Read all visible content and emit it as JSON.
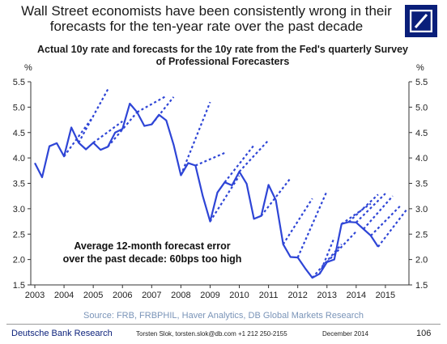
{
  "headline": "Wall Street economists have been consistently wrong in their forecasts for the ten-year rate over the past decade",
  "logo": {
    "icon": "deutsche-bank-slash-logo",
    "color": "#0a1f7a"
  },
  "source": "Source: FRB, FRBPHIL, Haver Analytics, DB Global Markets Research",
  "footer": {
    "brand": "Deutsche Bank Research",
    "contact": "Torsten Slok, torsten.slok@db.com  +1 212 250-2155",
    "date": "December 2014",
    "page": "106"
  },
  "chart_data": {
    "type": "line",
    "title": "Actual 10y rate and forecasts for the 10y rate from the Fed's quarterly Survey of Professional Forecasters",
    "ylabel_left": "%",
    "ylabel_right": "%",
    "xlim": [
      2003,
      2015.85
    ],
    "ylim": [
      1.5,
      5.5
    ],
    "yticks": [
      1.5,
      2.0,
      2.5,
      3.0,
      3.5,
      4.0,
      4.5,
      5.0,
      5.5
    ],
    "ytick_labels": [
      "1.5",
      "2.0",
      "2.5",
      "3.0",
      "3.5",
      "4.0",
      "4.5",
      "5.0",
      "5.5"
    ],
    "xtick_labels": [
      "2003",
      "2004",
      "2005",
      "2006",
      "2007",
      "2008",
      "2009",
      "2010",
      "2011",
      "2012",
      "2013",
      "2014",
      "2015"
    ],
    "grid": false,
    "legend": "none",
    "annotation": "Average 12-month forecast error over the past decade: 60bps too high",
    "line_color": "#2e45d6",
    "actual": {
      "x": [
        2003.0,
        2003.25,
        2003.5,
        2003.75,
        2004.0,
        2004.25,
        2004.5,
        2004.75,
        2005.0,
        2005.25,
        2005.5,
        2005.75,
        2006.0,
        2006.25,
        2006.5,
        2006.75,
        2007.0,
        2007.25,
        2007.5,
        2007.75,
        2008.0,
        2008.25,
        2008.5,
        2008.75,
        2009.0,
        2009.25,
        2009.5,
        2009.75,
        2010.0,
        2010.25,
        2010.5,
        2010.75,
        2011.0,
        2011.25,
        2011.5,
        2011.75,
        2012.0,
        2012.25,
        2012.5,
        2012.75,
        2013.0,
        2013.25,
        2013.5,
        2013.75,
        2014.0,
        2014.25,
        2014.5,
        2014.75
      ],
      "y": [
        3.9,
        3.62,
        4.23,
        4.29,
        4.03,
        4.6,
        4.3,
        4.17,
        4.3,
        4.16,
        4.22,
        4.5,
        4.57,
        5.07,
        4.9,
        4.63,
        4.66,
        4.85,
        4.74,
        4.26,
        3.66,
        3.9,
        3.85,
        3.25,
        2.75,
        3.32,
        3.52,
        3.46,
        3.73,
        3.49,
        2.8,
        2.86,
        3.47,
        3.17,
        2.3,
        2.05,
        2.04,
        1.83,
        1.64,
        1.72,
        1.95,
        2.0,
        2.7,
        2.74,
        2.73,
        2.6,
        2.47,
        2.25
      ]
    },
    "forecasts": [
      {
        "x": [
          2004.0,
          2005.0
        ],
        "y": [
          4.03,
          4.82
        ]
      },
      {
        "x": [
          2004.5,
          2005.5
        ],
        "y": [
          4.3,
          5.35
        ]
      },
      {
        "x": [
          2005.0,
          2006.0
        ],
        "y": [
          4.3,
          4.72
        ]
      },
      {
        "x": [
          2005.5,
          2006.5
        ],
        "y": [
          4.22,
          4.9
        ]
      },
      {
        "x": [
          2006.5,
          2007.5
        ],
        "y": [
          4.9,
          5.22
        ]
      },
      {
        "x": [
          2007.0,
          2007.75
        ],
        "y": [
          4.66,
          5.2
        ]
      },
      {
        "x": [
          2008.0,
          2009.0
        ],
        "y": [
          3.66,
          5.1
        ]
      },
      {
        "x": [
          2008.5,
          2009.5
        ],
        "y": [
          3.85,
          4.1
        ]
      },
      {
        "x": [
          2009.0,
          2010.0
        ],
        "y": [
          2.75,
          3.65
        ]
      },
      {
        "x": [
          2009.5,
          2010.5
        ],
        "y": [
          3.52,
          4.25
        ]
      },
      {
        "x": [
          2010.0,
          2011.0
        ],
        "y": [
          3.73,
          4.35
        ]
      },
      {
        "x": [
          2010.75,
          2011.75
        ],
        "y": [
          2.86,
          3.6
        ]
      },
      {
        "x": [
          2011.5,
          2012.5
        ],
        "y": [
          2.3,
          3.2
        ]
      },
      {
        "x": [
          2012.0,
          2013.0
        ],
        "y": [
          2.04,
          3.35
        ]
      },
      {
        "x": [
          2012.5,
          2013.5
        ],
        "y": [
          1.64,
          2.3
        ]
      },
      {
        "x": [
          2012.75,
          2013.25
        ],
        "y": [
          1.72,
          2.43
        ]
      },
      {
        "x": [
          2013.0,
          2014.0
        ],
        "y": [
          1.95,
          2.55
        ]
      },
      {
        "x": [
          2013.5,
          2014.5
        ],
        "y": [
          2.7,
          3.1
        ]
      },
      {
        "x": [
          2013.75,
          2014.75
        ],
        "y": [
          2.74,
          3.28
        ]
      },
      {
        "x": [
          2014.0,
          2015.0
        ],
        "y": [
          2.73,
          3.3
        ]
      },
      {
        "x": [
          2014.25,
          2015.25
        ],
        "y": [
          2.6,
          3.25
        ]
      },
      {
        "x": [
          2014.5,
          2015.5
        ],
        "y": [
          2.47,
          3.05
        ]
      },
      {
        "x": [
          2014.75,
          2015.75
        ],
        "y": [
          2.25,
          3.0
        ]
      }
    ]
  }
}
